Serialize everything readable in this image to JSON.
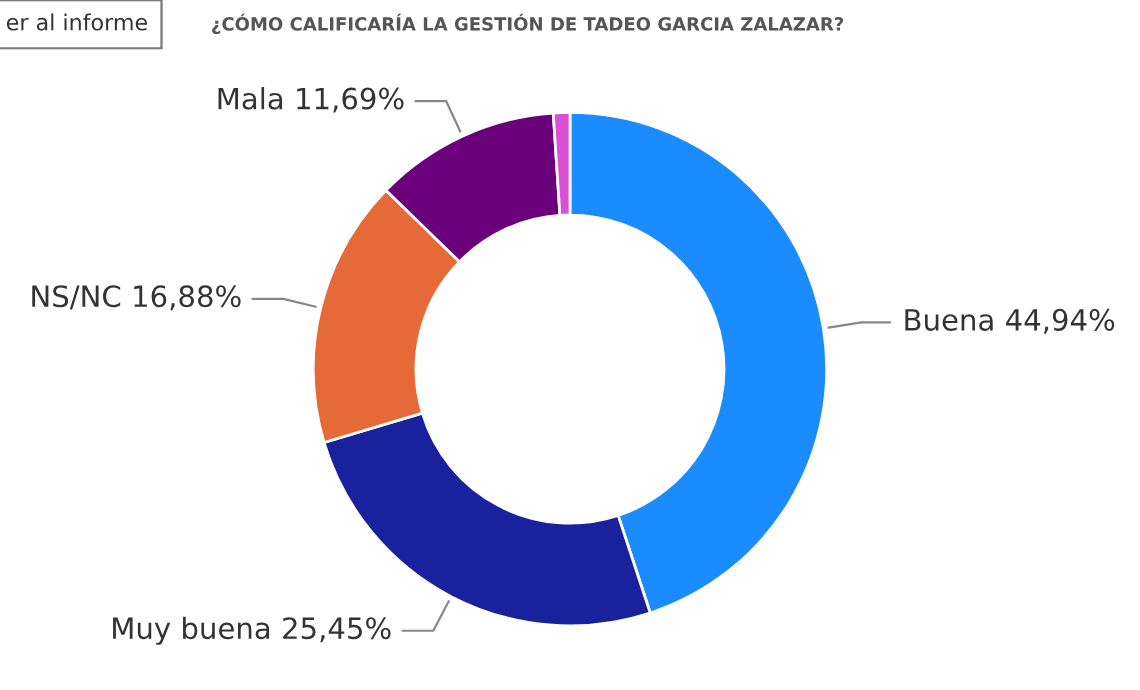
{
  "chart_data": {
    "type": "donut",
    "title": "¿CÓMO CALIFICARÍA LA GESTIÓN DE TADEO GARCIA ZALAZAR?",
    "annotations": [
      "er al informe"
    ],
    "categories": [
      "Buena",
      "Muy buena",
      "NS/NC",
      "Mala",
      null
    ],
    "values": [
      44.94,
      25.45,
      16.88,
      11.69,
      1.04
    ],
    "value_labels": [
      "44,94%",
      "25,45%",
      "16,88%",
      "11,69%",
      null
    ],
    "colors": [
      "#1a8cff",
      "#1a219c",
      "#e66a38",
      "#6b007b",
      "#d94fd6"
    ]
  }
}
